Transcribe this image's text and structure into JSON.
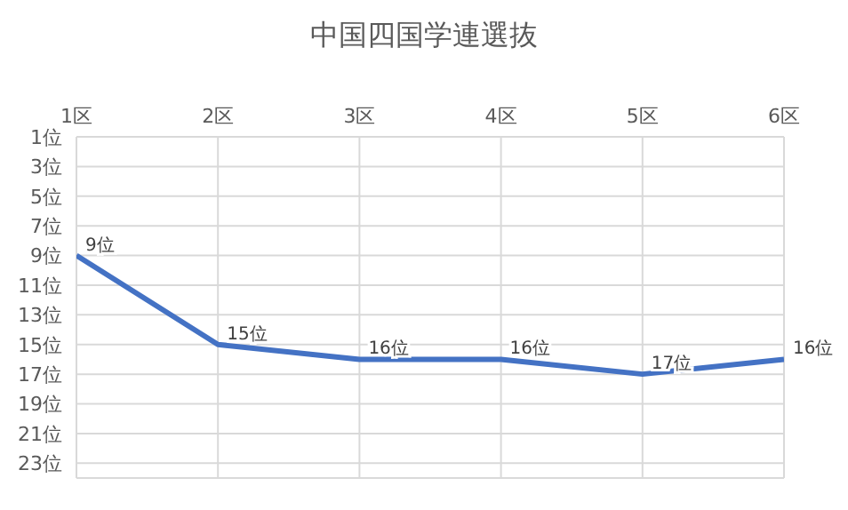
{
  "chart_data": {
    "type": "line",
    "title": "中国四国学連選抜",
    "categories": [
      "1区",
      "2区",
      "3区",
      "4区",
      "5区",
      "6区"
    ],
    "series": [
      {
        "color": "#4472c4",
        "values": [
          9,
          15,
          16,
          16,
          17,
          16
        ],
        "value_labels": [
          "9位",
          "15位",
          "16位",
          "16位",
          "17位",
          "16位"
        ]
      }
    ],
    "ylim": [
      24,
      1
    ],
    "yticks": [
      {
        "value": 1,
        "label": "1位"
      },
      {
        "value": 3,
        "label": "3位"
      },
      {
        "value": 5,
        "label": "5位"
      },
      {
        "value": 7,
        "label": "7位"
      },
      {
        "value": 9,
        "label": "9位"
      },
      {
        "value": 11,
        "label": "11位"
      },
      {
        "value": 13,
        "label": "13位"
      },
      {
        "value": 15,
        "label": "15位"
      },
      {
        "value": 17,
        "label": "17位"
      },
      {
        "value": 19,
        "label": "19位"
      },
      {
        "value": 21,
        "label": "21位"
      },
      {
        "value": 23,
        "label": "23位"
      }
    ],
    "grid": true,
    "marker": "none",
    "line_style": "solid"
  }
}
